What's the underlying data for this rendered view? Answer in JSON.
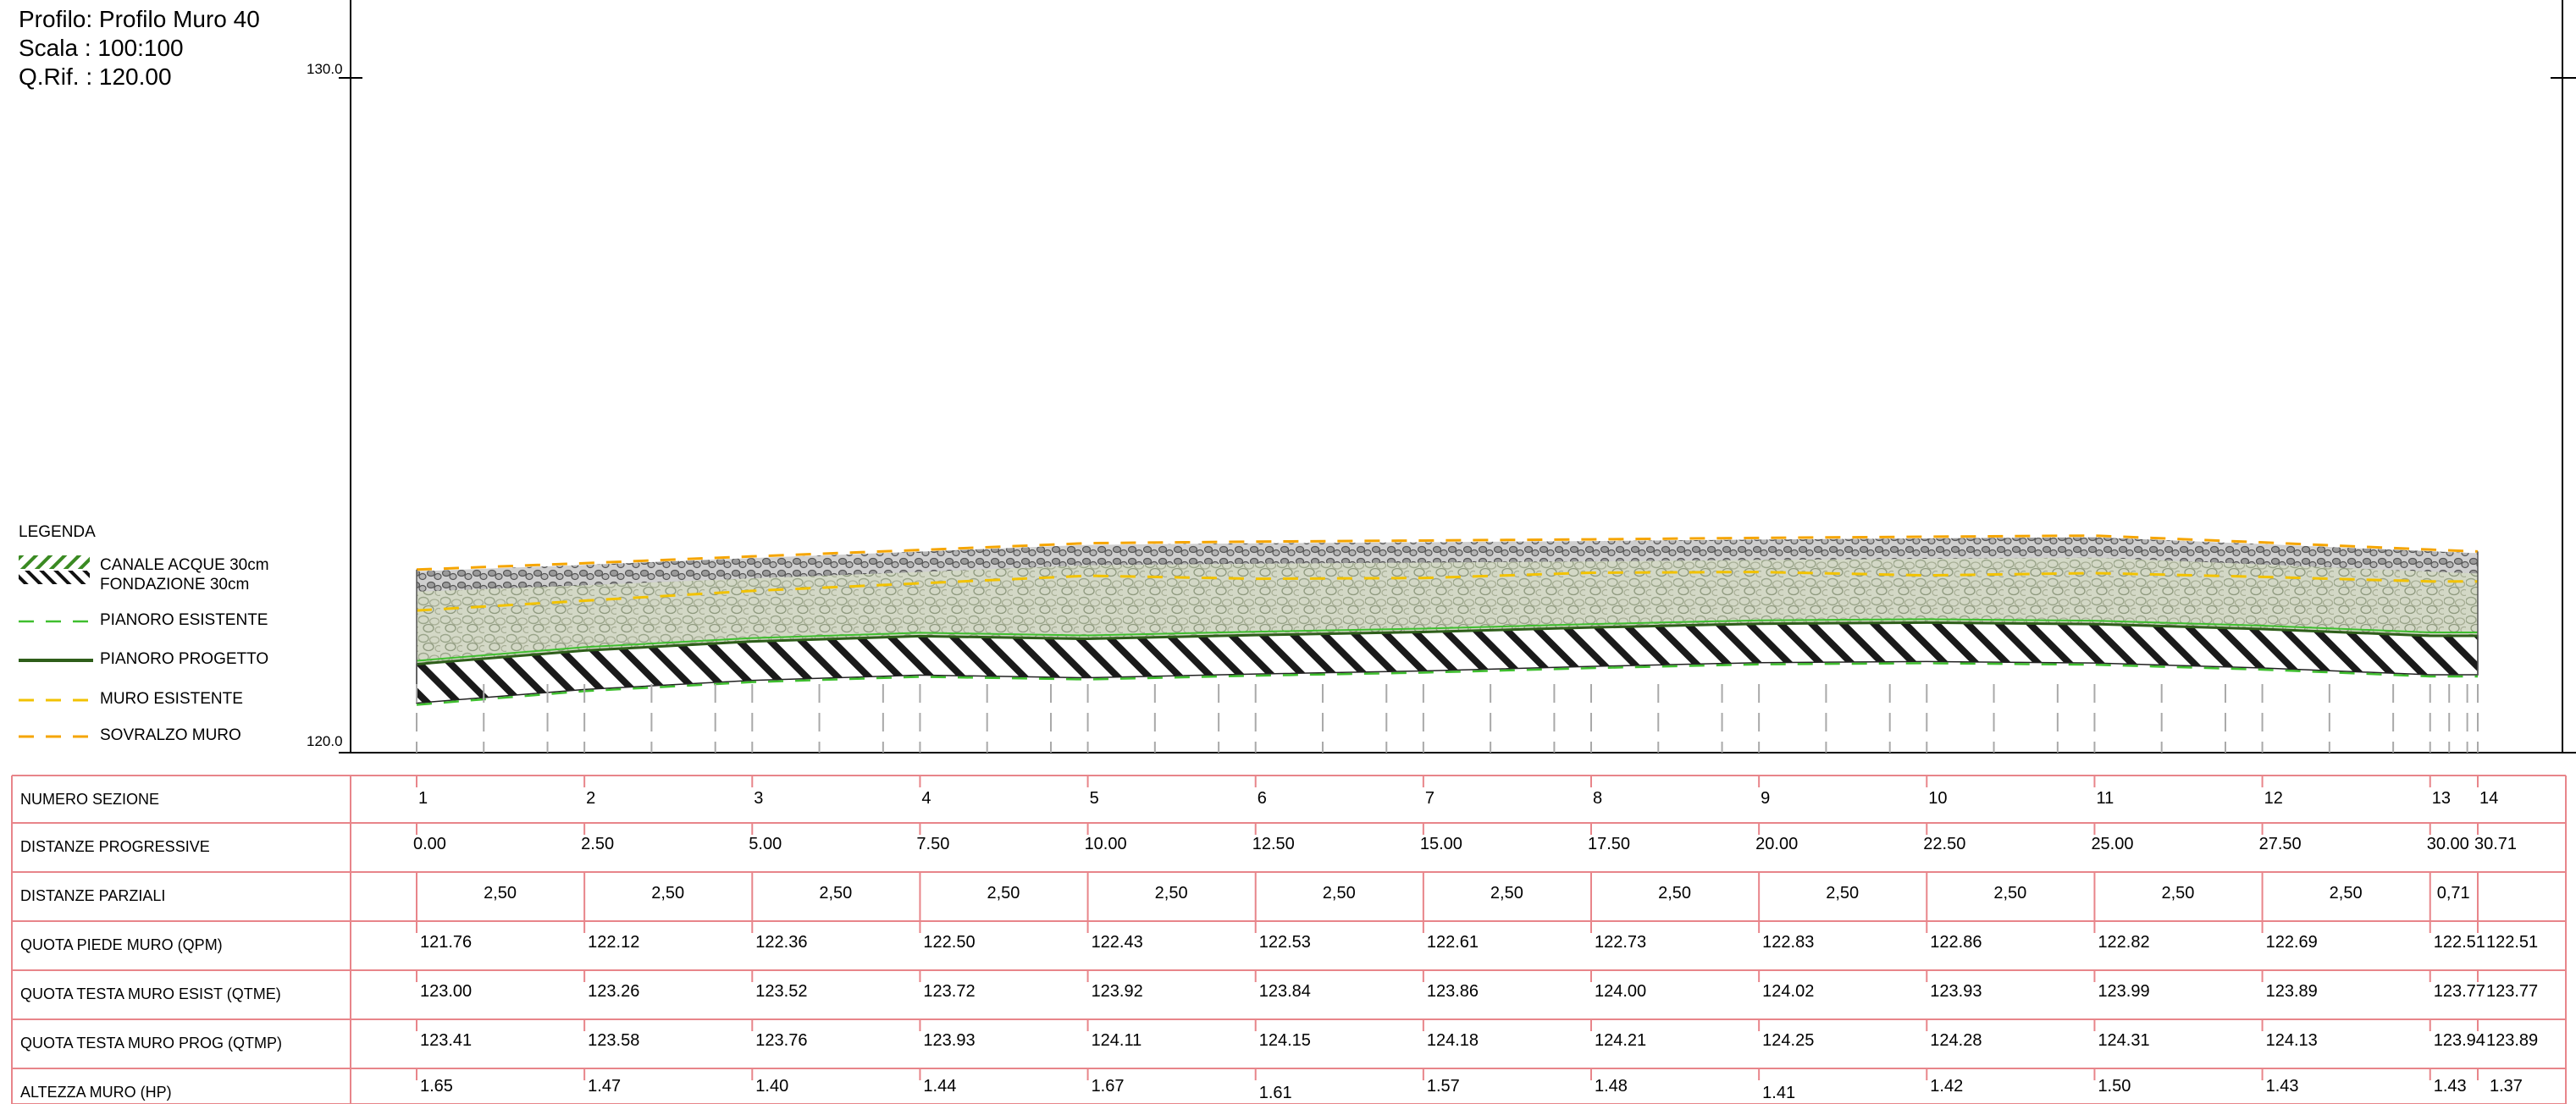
{
  "header": {
    "profilo": "Profilo: Profilo Muro 40",
    "scala": "Scala : 100:100",
    "qrif": "Q.Rif. : 120.00"
  },
  "axis": {
    "top_label": "130.0",
    "bottom_label": "120.0",
    "ymin": 120.0,
    "ymax": 130.0
  },
  "legend": {
    "title": "LEGENDA",
    "items": [
      {
        "label": "CANALE ACQUE 30cm",
        "swatch": "hatch-green"
      },
      {
        "label": "FONDAZIONE 30cm",
        "swatch": "hatch-black"
      },
      {
        "label": "PIANORO ESISTENTE",
        "swatch": "dash-green"
      },
      {
        "label": "PIANORO PROGETTO",
        "swatch": "line-darkgreen"
      },
      {
        "label": "MURO ESISTENTE",
        "swatch": "dash-yellow"
      },
      {
        "label": "SOVRALZO MURO",
        "swatch": "dash-orange"
      }
    ]
  },
  "colors": {
    "table_border": "#e8858a",
    "wall_fill": "#cfd4c2",
    "green": "#3fbf2f",
    "dark_green": "#2e5e1a",
    "yellow": "#f2c200",
    "orange": "#f5a500",
    "grey": "#a9a9a9"
  },
  "table": {
    "row_labels": [
      "NUMERO SEZIONE",
      "DISTANZE PROGRESSIVE",
      "DISTANZE PARZIALI",
      "QUOTA PIEDE MURO (QPM)",
      "QUOTA TESTA MURO ESIST (QTME)",
      "QUOTA TESTA MURO PROG (QTMP)",
      "ALTEZZA MURO (HP)"
    ],
    "sections": [
      "1",
      "2",
      "3",
      "4",
      "5",
      "6",
      "7",
      "8",
      "9",
      "10",
      "11",
      "12",
      "13",
      "14"
    ],
    "progressive": [
      "0.00",
      "2.50",
      "5.00",
      "7.50",
      "10.00",
      "12.50",
      "15.00",
      "17.50",
      "20.00",
      "22.50",
      "25.00",
      "27.50",
      "30.00",
      "30.71"
    ],
    "partial": [
      "2,50",
      "2,50",
      "2,50",
      "2,50",
      "2,50",
      "2,50",
      "2,50",
      "2,50",
      "2,50",
      "2,50",
      "2,50",
      "2,50",
      "0,71"
    ],
    "qpm": [
      "121.76",
      "122.12",
      "122.36",
      "122.50",
      "122.43",
      "122.53",
      "122.61",
      "122.73",
      "122.83",
      "122.86",
      "122.82",
      "122.69",
      "122.51",
      "122.51"
    ],
    "qtme": [
      "123.00",
      "123.26",
      "123.52",
      "123.72",
      "123.92",
      "123.84",
      "123.86",
      "124.00",
      "124.02",
      "123.93",
      "123.99",
      "123.89",
      "123.77",
      "123.77"
    ],
    "qtmp": [
      "123.41",
      "123.58",
      "123.76",
      "123.93",
      "124.11",
      "124.15",
      "124.18",
      "124.21",
      "124.25",
      "124.28",
      "124.31",
      "124.13",
      "123.94",
      "123.89"
    ],
    "hp": [
      "1.65",
      "1.47",
      "1.40",
      "1.44",
      "1.67",
      "1.61",
      "1.57",
      "1.48",
      "1.41",
      "1.42",
      "1.50",
      "1.43",
      "1.43",
      "1.37"
    ]
  },
  "chart_data": {
    "type": "line",
    "x": [
      0.0,
      2.5,
      5.0,
      7.5,
      10.0,
      12.5,
      15.0,
      17.5,
      20.0,
      22.5,
      25.0,
      27.5,
      30.0,
      30.71
    ],
    "ylim": [
      120.0,
      130.0
    ],
    "series": [
      {
        "name": "QUOTA PIEDE MURO (QPM)",
        "values": [
          121.76,
          122.12,
          122.36,
          122.5,
          122.43,
          122.53,
          122.61,
          122.73,
          122.83,
          122.86,
          122.82,
          122.69,
          122.51,
          122.51
        ]
      },
      {
        "name": "QUOTA TESTA MURO ESIST (QTME)",
        "values": [
          123.0,
          123.26,
          123.52,
          123.72,
          123.92,
          123.84,
          123.86,
          124.0,
          124.02,
          123.93,
          123.99,
          123.89,
          123.77,
          123.77
        ]
      },
      {
        "name": "QUOTA TESTA MURO PROG (QTMP)",
        "values": [
          123.41,
          123.58,
          123.76,
          123.93,
          124.11,
          124.15,
          124.18,
          124.21,
          124.25,
          124.28,
          124.31,
          124.13,
          123.94,
          123.89
        ]
      }
    ]
  }
}
